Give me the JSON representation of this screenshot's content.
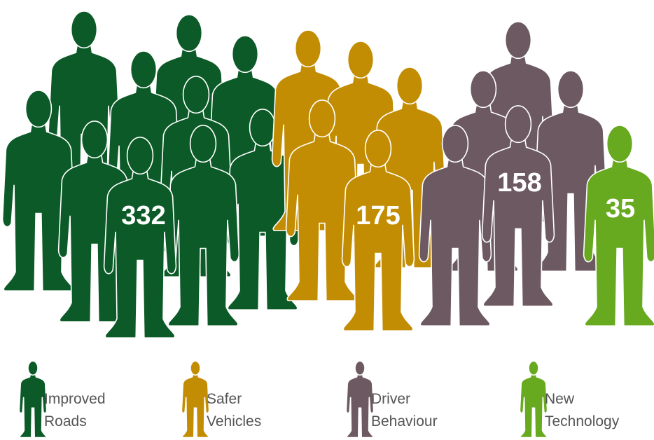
{
  "chart_data": {
    "type": "pictograph",
    "series": [
      {
        "name": "Improved Roads",
        "color": "#0b5a27",
        "values": [
          332
        ]
      },
      {
        "name": "Safer Vehicles",
        "color": "#c38d03",
        "values": [
          175
        ]
      },
      {
        "name": "Driver Behaviour",
        "color": "#6c5961",
        "values": [
          158
        ]
      },
      {
        "name": "New Technology",
        "color": "#67a91f",
        "values": [
          35
        ]
      }
    ]
  }
}
